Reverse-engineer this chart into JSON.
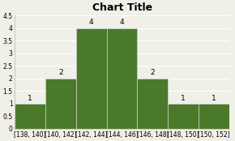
{
  "title": "Chart Title",
  "categories": [
    "[138, 140]",
    "[140, 142]",
    "[142, 144]",
    "[144, 146]",
    "[146, 148]",
    "[148, 150]",
    "[150, 152]"
  ],
  "values": [
    1,
    2,
    4,
    4,
    2,
    1,
    1
  ],
  "bar_color": "#4a7a29",
  "bar_edge_color": "#d0d0c8",
  "ylim": [
    0,
    4.5
  ],
  "yticks": [
    0,
    0.5,
    1,
    1.5,
    2,
    2.5,
    3,
    3.5,
    4,
    4.5
  ],
  "title_fontsize": 9,
  "label_fontsize": 5.5,
  "value_fontsize": 6.5,
  "background_color": "#f0efe8",
  "grid_color": "#ffffff"
}
